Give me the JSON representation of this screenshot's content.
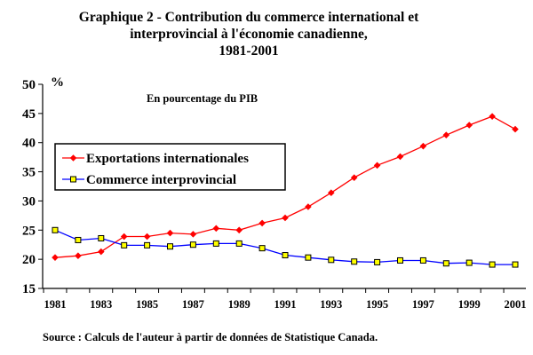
{
  "chart_data": {
    "type": "line",
    "title_lines": [
      "Graphique 2 - Contribution du commerce international et",
      "interprovincial à l'économie canadienne,",
      "1981-2001"
    ],
    "subtitle": "En pourcentage du PIB",
    "ylabel": "%",
    "xlabel": "",
    "ylim": [
      15,
      50
    ],
    "yticks": [
      15,
      20,
      25,
      30,
      35,
      40,
      45,
      50
    ],
    "x": [
      1981,
      1982,
      1983,
      1984,
      1985,
      1986,
      1987,
      1988,
      1989,
      1990,
      1991,
      1992,
      1993,
      1994,
      1995,
      1996,
      1997,
      1998,
      1999,
      2000,
      2001
    ],
    "xtick_labels": [
      "1981",
      "1983",
      "1985",
      "1987",
      "1989",
      "1991",
      "1993",
      "1995",
      "1997",
      "1999",
      "2001"
    ],
    "series": [
      {
        "name": "Exportations internationales",
        "color": "#ff0000",
        "marker": "diamond",
        "values": [
          20.3,
          20.6,
          21.3,
          23.9,
          23.9,
          24.5,
          24.3,
          25.3,
          25.0,
          26.2,
          27.1,
          29.0,
          31.4,
          34.0,
          36.1,
          37.6,
          39.4,
          41.3,
          43.0,
          44.5,
          42.3
        ]
      },
      {
        "name": "Commerce interprovincial",
        "color": "#0000ff",
        "marker": "square",
        "values": [
          25.0,
          23.3,
          23.6,
          22.4,
          22.4,
          22.2,
          22.5,
          22.7,
          22.7,
          21.9,
          20.7,
          20.3,
          19.9,
          19.6,
          19.5,
          19.8,
          19.8,
          19.3,
          19.4,
          19.1,
          19.1
        ]
      }
    ],
    "grid": false,
    "legend_position": "left"
  },
  "source": "Source :  Calculs de l'auteur à partir de données de Statistique Canada."
}
